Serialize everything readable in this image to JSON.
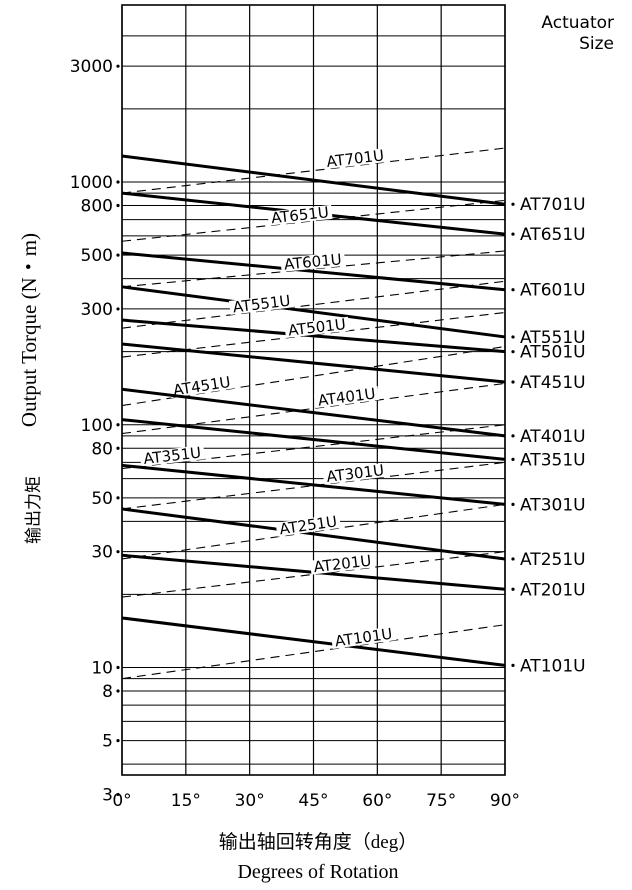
{
  "chart_data": {
    "type": "line",
    "y_scale": "log",
    "ylim": [
      3,
      4000
    ],
    "xlim": [
      0,
      90
    ],
    "x_ticks": [
      "0°",
      "15°",
      "30°",
      "45°",
      "60°",
      "75°",
      "90°"
    ],
    "y_ticks": [
      {
        "value": 3000,
        "label": "3000"
      },
      {
        "value": 1000,
        "label": "1000"
      },
      {
        "value": 800,
        "label": "800"
      },
      {
        "value": 500,
        "label": "500"
      },
      {
        "value": 300,
        "label": "300"
      },
      {
        "value": 100,
        "label": "100"
      },
      {
        "value": 80,
        "label": "80"
      },
      {
        "value": 50,
        "label": "50"
      },
      {
        "value": 30,
        "label": "30"
      },
      {
        "value": 10,
        "label": "10"
      },
      {
        "value": 8,
        "label": "8"
      },
      {
        "value": 5,
        "label": "5"
      },
      {
        "value": 3,
        "label": "3"
      }
    ],
    "grid_y": [
      4000,
      3000,
      2000,
      1000,
      900,
      800,
      700,
      600,
      500,
      400,
      300,
      200,
      100,
      90,
      80,
      70,
      60,
      50,
      40,
      30,
      20,
      10,
      9,
      8,
      7,
      6,
      5,
      4,
      3
    ],
    "ylabel_cn": "输出力矩",
    "ylabel": "Output Torque (N・m)",
    "xlabel_cn": "输出轴回转角度（deg）",
    "xlabel": "Degrees of Rotation",
    "right_header": [
      "Actuator",
      "Size"
    ],
    "series": [
      {
        "name": "AT701U",
        "solid": [
          1280,
          810
        ],
        "dashed": [
          900,
          1380
        ],
        "label_x": 55
      },
      {
        "name": "AT651U",
        "solid": [
          900,
          610
        ],
        "dashed": [
          570,
          840
        ],
        "label_x": 42
      },
      {
        "name": "AT601U",
        "solid": [
          510,
          360
        ],
        "dashed": [
          370,
          520
        ],
        "label_x": 45
      },
      {
        "name": "AT551U",
        "solid": [
          370,
          230
        ],
        "dashed": [
          250,
          390
        ],
        "label_x": 33
      },
      {
        "name": "AT501U",
        "solid": [
          270,
          200
        ],
        "dashed": [
          190,
          290
        ],
        "label_x": 46
      },
      {
        "name": "AT451U",
        "solid": [
          215,
          150
        ],
        "dashed": [
          120,
          210
        ],
        "label_x": 19
      },
      {
        "name": "AT401U",
        "solid": [
          140,
          90
        ],
        "dashed": [
          92,
          148
        ],
        "label_x": 53
      },
      {
        "name": "AT351U",
        "solid": [
          105,
          72
        ],
        "dashed": [
          66,
          100
        ],
        "label_x": 12
      },
      {
        "name": "AT301U",
        "solid": [
          68,
          47
        ],
        "dashed": [
          45,
          70
        ],
        "label_x": 55
      },
      {
        "name": "AT251U",
        "solid": [
          45,
          28
        ],
        "dashed": [
          28,
          47
        ],
        "label_x": 44
      },
      {
        "name": "AT201U",
        "solid": [
          29,
          21
        ],
        "dashed": [
          19.5,
          30
        ],
        "label_x": 52
      },
      {
        "name": "AT101U",
        "solid": [
          16,
          10.2
        ],
        "dashed": [
          9,
          15
        ],
        "label_x": 57
      }
    ],
    "right_labels": [
      {
        "text": "AT701U",
        "value": 810
      },
      {
        "text": "AT651U",
        "value": 610
      },
      {
        "text": "AT601U",
        "value": 360
      },
      {
        "text": "AT551U",
        "value": 230
      },
      {
        "text": "AT501U",
        "value": 200
      },
      {
        "text": "AT451U",
        "value": 150
      },
      {
        "text": "AT401U",
        "value": 90
      },
      {
        "text": "AT351U",
        "value": 72
      },
      {
        "text": "AT301U",
        "value": 47
      },
      {
        "text": "AT251U",
        "value": 28
      },
      {
        "text": "AT201U",
        "value": 21
      },
      {
        "text": "AT101U",
        "value": 10.2
      }
    ]
  }
}
